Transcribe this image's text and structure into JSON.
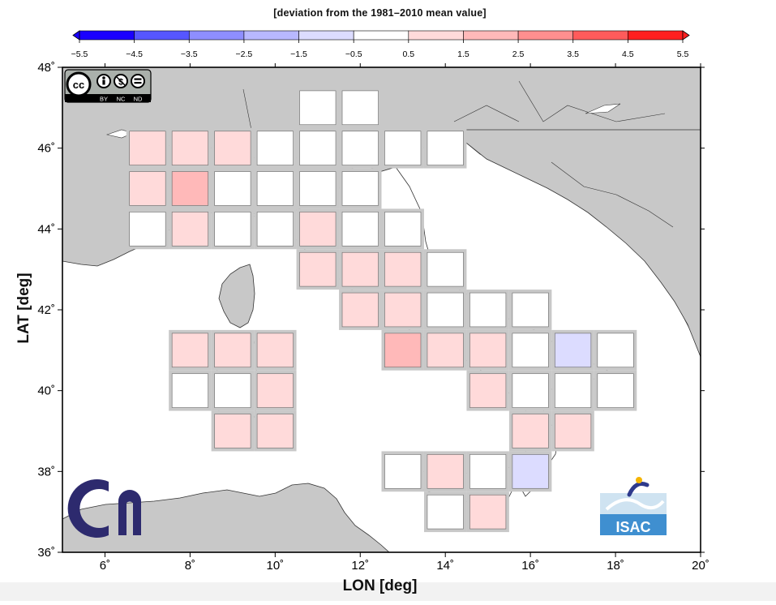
{
  "colorbar": {
    "title": "[deviation from the 1981–2010 mean value]",
    "ticks": [
      "−5.5",
      "−4.5",
      "−3.5",
      "−2.5",
      "−1.5",
      "−0.5",
      "0.5",
      "1.5",
      "2.5",
      "3.5",
      "4.5",
      "5.5"
    ],
    "colors": [
      "#1a00ff",
      "#5656ff",
      "#8e8eff",
      "#b8b8ff",
      "#dcdcff",
      "#ffffff",
      "#ffdada",
      "#ffb9b9",
      "#ff8f8f",
      "#ff5b5b",
      "#ff1f1f"
    ]
  },
  "axes": {
    "xlabel": "LON [deg]",
    "ylabel": "LAT [deg]",
    "xlim": [
      5,
      20
    ],
    "ylim": [
      36,
      48
    ],
    "xticks": [
      6,
      8,
      10,
      12,
      14,
      16,
      18,
      20
    ],
    "yticks": [
      36,
      38,
      40,
      42,
      44,
      46,
      48
    ],
    "xtick_labels": [
      "6˚",
      "8˚",
      "10˚",
      "12˚",
      "14˚",
      "16˚",
      "18˚",
      "20˚"
    ],
    "ytick_labels": [
      "36˚",
      "38˚",
      "40˚",
      "42˚",
      "44˚",
      "46˚",
      "48˚"
    ]
  },
  "license_badge": {
    "icons": [
      "cc",
      "by",
      "nc",
      "nd"
    ],
    "labels": [
      "BY",
      "NC",
      "ND"
    ]
  },
  "logos": {
    "cnr_icon": "cnr-logo",
    "isac_text": "ISAC"
  },
  "chart_data": {
    "type": "heatmap",
    "grid_spacing_deg": 1,
    "value_meaning": "deviation from the 1981–2010 mean value",
    "cells": [
      {
        "lon": 11,
        "lat": 47,
        "value": 0.2
      },
      {
        "lon": 12,
        "lat": 47,
        "value": 0.2
      },
      {
        "lon": 7,
        "lat": 46,
        "value": 1.0
      },
      {
        "lon": 8,
        "lat": 46,
        "value": 0.7
      },
      {
        "lon": 9,
        "lat": 46,
        "value": 0.8
      },
      {
        "lon": 10,
        "lat": 46,
        "value": 0.3
      },
      {
        "lon": 11,
        "lat": 46,
        "value": 0.1
      },
      {
        "lon": 12,
        "lat": 46,
        "value": 0.2
      },
      {
        "lon": 13,
        "lat": 46,
        "value": 0.2
      },
      {
        "lon": 14,
        "lat": 46,
        "value": 0.1
      },
      {
        "lon": 7,
        "lat": 45,
        "value": 1.3
      },
      {
        "lon": 8,
        "lat": 45,
        "value": 1.9
      },
      {
        "lon": 9,
        "lat": 45,
        "value": 0.2
      },
      {
        "lon": 10,
        "lat": 45,
        "value": 0.1
      },
      {
        "lon": 11,
        "lat": 45,
        "value": 0.1
      },
      {
        "lon": 12,
        "lat": 45,
        "value": 0.2
      },
      {
        "lon": 7,
        "lat": 44,
        "value": 0.2
      },
      {
        "lon": 8,
        "lat": 44,
        "value": 0.6
      },
      {
        "lon": 9,
        "lat": 44,
        "value": 0.2
      },
      {
        "lon": 10,
        "lat": 44,
        "value": 0.1
      },
      {
        "lon": 11,
        "lat": 44,
        "value": 0.8
      },
      {
        "lon": 12,
        "lat": 44,
        "value": 0.2
      },
      {
        "lon": 13,
        "lat": 44,
        "value": 0.2
      },
      {
        "lon": 11,
        "lat": 43,
        "value": 0.9
      },
      {
        "lon": 12,
        "lat": 43,
        "value": 0.9
      },
      {
        "lon": 13,
        "lat": 43,
        "value": 0.9
      },
      {
        "lon": 14,
        "lat": 43,
        "value": 0.2
      },
      {
        "lon": 12,
        "lat": 42,
        "value": 0.9
      },
      {
        "lon": 13,
        "lat": 42,
        "value": 0.9
      },
      {
        "lon": 14,
        "lat": 42,
        "value": 0.2
      },
      {
        "lon": 15,
        "lat": 42,
        "value": 0.1
      },
      {
        "lon": 16,
        "lat": 42,
        "value": 0.1
      },
      {
        "lon": 8,
        "lat": 41,
        "value": 0.8
      },
      {
        "lon": 9,
        "lat": 41,
        "value": 0.6
      },
      {
        "lon": 10,
        "lat": 41,
        "value": 0.8
      },
      {
        "lon": 13,
        "lat": 41,
        "value": 1.8
      },
      {
        "lon": 14,
        "lat": 41,
        "value": 0.8
      },
      {
        "lon": 15,
        "lat": 41,
        "value": 0.8
      },
      {
        "lon": 16,
        "lat": 41,
        "value": 0.1
      },
      {
        "lon": 17,
        "lat": 41,
        "value": -0.7
      },
      {
        "lon": 18,
        "lat": 41,
        "value": 0.1
      },
      {
        "lon": 8,
        "lat": 40,
        "value": 0.1
      },
      {
        "lon": 9,
        "lat": 40,
        "value": 0.1
      },
      {
        "lon": 10,
        "lat": 40,
        "value": 0.8
      },
      {
        "lon": 15,
        "lat": 40,
        "value": 0.8
      },
      {
        "lon": 16,
        "lat": 40,
        "value": 0.1
      },
      {
        "lon": 17,
        "lat": 40,
        "value": 0.1
      },
      {
        "lon": 18,
        "lat": 40,
        "value": 0.1
      },
      {
        "lon": 9,
        "lat": 39,
        "value": 0.8
      },
      {
        "lon": 10,
        "lat": 39,
        "value": 0.8
      },
      {
        "lon": 16,
        "lat": 39,
        "value": 0.8
      },
      {
        "lon": 17,
        "lat": 39,
        "value": 0.8
      },
      {
        "lon": 13,
        "lat": 38,
        "value": 0.1
      },
      {
        "lon": 14,
        "lat": 38,
        "value": 0.8
      },
      {
        "lon": 15,
        "lat": 38,
        "value": 0.1
      },
      {
        "lon": 16,
        "lat": 38,
        "value": -0.7
      },
      {
        "lon": 14,
        "lat": 37,
        "value": 0.1
      },
      {
        "lon": 15,
        "lat": 37,
        "value": 0.8
      }
    ]
  }
}
